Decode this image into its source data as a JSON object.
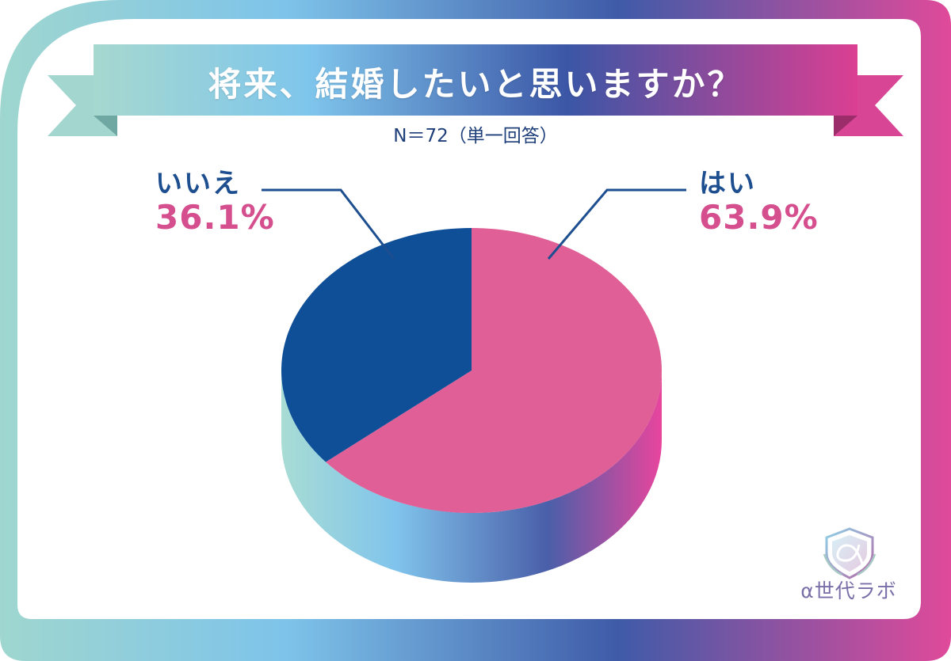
{
  "title": "将来、結婚したいと思いますか？",
  "subtitle": "N＝72（単一回答）",
  "chart_data": {
    "type": "pie",
    "title": "将来、結婚したいと思いますか？",
    "subtitle": "N＝72（単一回答）",
    "categories": [
      "はい",
      "いいえ"
    ],
    "values": [
      63.9,
      36.1
    ],
    "labels": [
      "63.9%",
      "36.1%"
    ],
    "unit": "%",
    "colors": [
      "#df5f96",
      "#0e4f98"
    ]
  },
  "logo": {
    "text": "α世代ラボ",
    "icon": "alpha-shield-logo"
  }
}
